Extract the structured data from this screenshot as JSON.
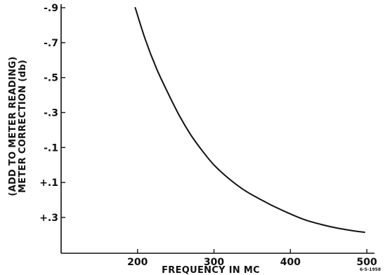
{
  "chart_data": {
    "type": "line",
    "title": "",
    "xlabel": "FREQUENCY IN MC",
    "ylabel_lines": [
      "(ADD TO METER READING)",
      "METER CORRECTION (db)"
    ],
    "x_ticks": [
      200,
      300,
      400,
      500
    ],
    "x_tick_labels": [
      "200",
      "300",
      "400",
      "500"
    ],
    "y_ticks": [
      0.9,
      0.7,
      0.5,
      0.3,
      0.1,
      -0.1,
      -0.3
    ],
    "y_tick_labels": [
      "-.9",
      "-.7",
      "-.5",
      "-.3",
      "-.1",
      "+.1",
      "+.3"
    ],
    "xlim": [
      100,
      510
    ],
    "ylim": [
      -0.505,
      0.92
    ],
    "grid": false,
    "reference": "6-5-1958",
    "series": [
      {
        "x": [
          197,
          210,
          225,
          240,
          255,
          270,
          285,
          300,
          320,
          340,
          360,
          380,
          400,
          420,
          440,
          460,
          480,
          497
        ],
        "y": [
          0.9,
          0.72,
          0.55,
          0.41,
          0.28,
          0.17,
          0.08,
          0.0,
          -0.08,
          -0.145,
          -0.195,
          -0.24,
          -0.28,
          -0.315,
          -0.34,
          -0.36,
          -0.375,
          -0.385
        ]
      }
    ]
  }
}
